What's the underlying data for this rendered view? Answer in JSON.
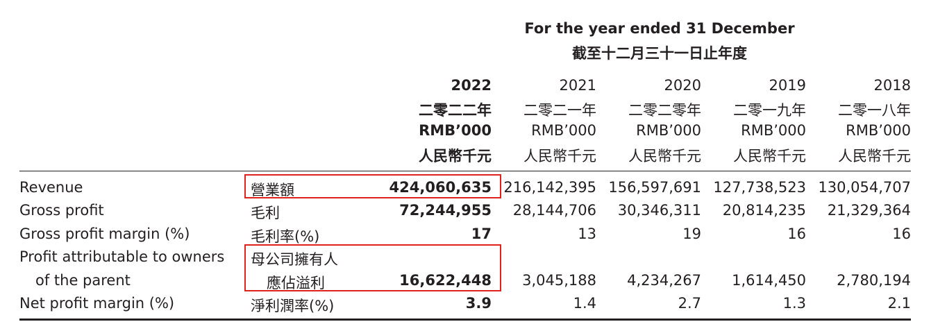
{
  "header": {
    "title_en": "For the year ended 31 December",
    "title_zh": "截至十二月三十一日止年度"
  },
  "columns": [
    {
      "year": "2022",
      "year_zh": "二零二二年",
      "unit_en": "RMB’000",
      "unit_zh": "人民幣千元"
    },
    {
      "year": "2021",
      "year_zh": "二零二一年",
      "unit_en": "RMB’000",
      "unit_zh": "人民幣千元"
    },
    {
      "year": "2020",
      "year_zh": "二零二零年",
      "unit_en": "RMB’000",
      "unit_zh": "人民幣千元"
    },
    {
      "year": "2019",
      "year_zh": "二零一九年",
      "unit_en": "RMB’000",
      "unit_zh": "人民幣千元"
    },
    {
      "year": "2018",
      "year_zh": "二零一八年",
      "unit_en": "RMB’000",
      "unit_zh": "人民幣千元"
    }
  ],
  "rows": [
    {
      "label_en": "Revenue",
      "label_zh": "營業額",
      "values": [
        "424,060,635",
        "216,142,395",
        "156,597,691",
        "127,738,523",
        "130,054,707"
      ]
    },
    {
      "label_en": "Gross profit",
      "label_zh": "毛利",
      "values": [
        "72,244,955",
        "28,144,706",
        "30,346,311",
        "20,814,235",
        "21,329,364"
      ]
    },
    {
      "label_en": "Gross profit margin (%)",
      "label_zh": "毛利率(%)",
      "values": [
        "17",
        "13",
        "19",
        "16",
        "16"
      ]
    },
    {
      "label_en": "Profit attributable to owners",
      "label_en_2": "of the parent",
      "label_zh": "母公司擁有人",
      "label_zh_2": "應佔溢利",
      "values": [
        "16,622,448",
        "3,045,188",
        "4,234,267",
        "1,614,450",
        "2,780,194"
      ]
    },
    {
      "label_en": "Net profit margin (%)",
      "label_zh": "淨利潤率(%)",
      "values": [
        "3.9",
        "1.4",
        "2.7",
        "1.3",
        "2.1"
      ]
    }
  ],
  "colors": {
    "text": "#231f20",
    "highlight": "#e0201b"
  }
}
